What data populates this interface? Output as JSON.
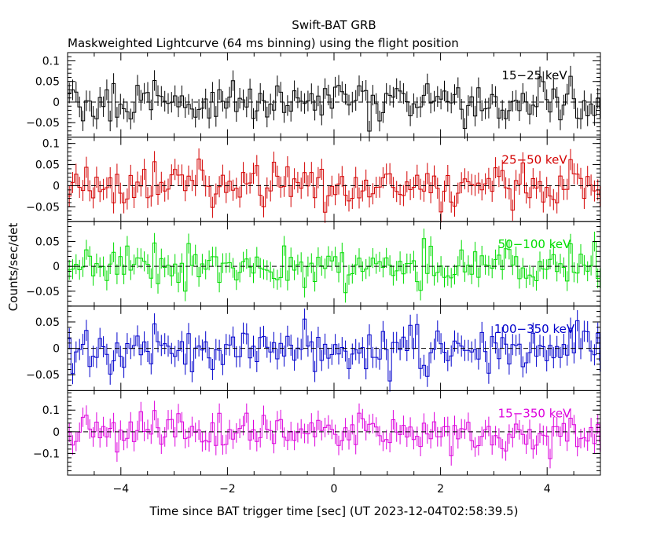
{
  "chart_data": {
    "type": "line",
    "title": "Swift-BAT GRB",
    "subtitle": "Maskweighted Lightcurve (64 ms binning) using the flight position",
    "xlabel": "Time since BAT trigger time [sec] (UT 2023-12-04T02:58:39.5)",
    "ylabel": "Counts/sec/det",
    "xlim": [
      -5,
      5
    ],
    "bin_width_sec": 0.064,
    "x_ticks": [
      "−4",
      "−2",
      "0",
      "2",
      "4"
    ],
    "panels": [
      {
        "name": "15−25 keV",
        "color": "#000000",
        "ylim": [
          -0.085,
          0.12
        ],
        "y_ticks": [
          "0.1",
          "0.05",
          "0",
          "−0.05"
        ],
        "tick_values": [
          0.1,
          0.05,
          0,
          -0.05
        ],
        "amplitude": 0.025,
        "error": 0.025
      },
      {
        "name": "25−50 keV",
        "color": "#d40000",
        "ylim": [
          -0.085,
          0.115
        ],
        "y_ticks": [
          "0.1",
          "0.05",
          "0",
          "−0.05"
        ],
        "tick_values": [
          0.1,
          0.05,
          0,
          -0.05
        ],
        "amplitude": 0.025,
        "error": 0.025
      },
      {
        "name": "50−100 keV",
        "color": "#00dd00",
        "ylim": [
          -0.08,
          0.09
        ],
        "y_ticks": [
          "0.05",
          "0",
          "−0.05"
        ],
        "tick_values": [
          0.05,
          0,
          -0.05
        ],
        "amplitude": 0.02,
        "error": 0.02
      },
      {
        "name": "100−350 keV",
        "color": "#0000cc",
        "ylim": [
          -0.08,
          0.08
        ],
        "y_ticks": [
          "0.05",
          "0",
          "−0.05"
        ],
        "tick_values": [
          0.05,
          0,
          -0.05
        ],
        "amplitude": 0.02,
        "error": 0.02
      },
      {
        "name": "15−350 keV",
        "color": "#dd00dd",
        "ylim": [
          -0.2,
          0.19
        ],
        "y_ticks": [
          "0.1",
          "0",
          "−0.1"
        ],
        "tick_values": [
          0.1,
          0,
          -0.1
        ],
        "amplitude": 0.045,
        "error": 0.045
      }
    ]
  }
}
